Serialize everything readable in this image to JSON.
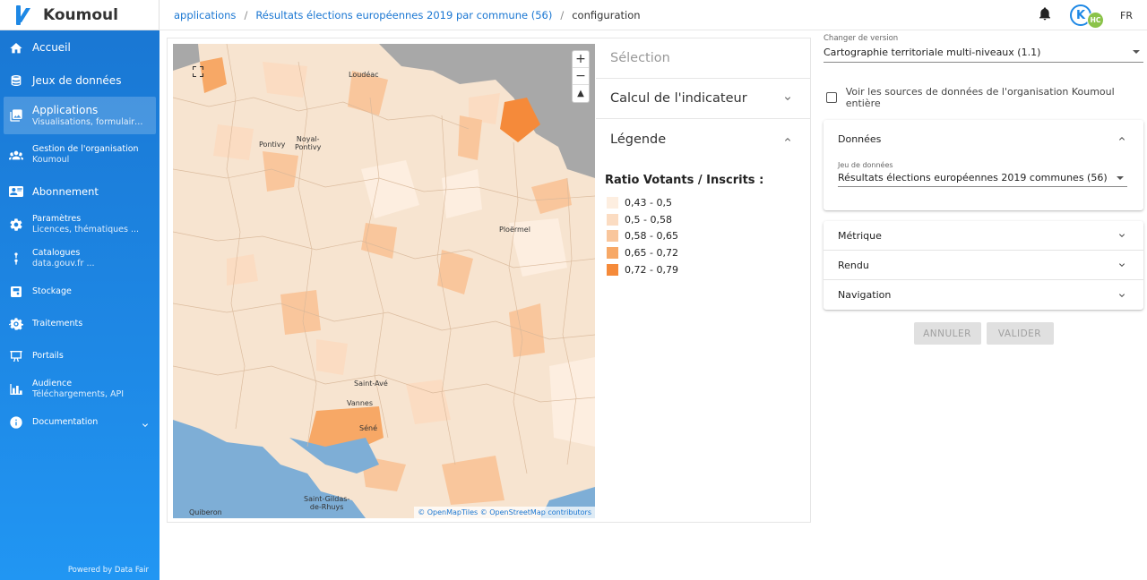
{
  "brand": {
    "name": "Koumoul"
  },
  "sidebar": {
    "items": [
      {
        "label": "Accueil",
        "sub": ""
      },
      {
        "label": "Jeux de données",
        "sub": ""
      },
      {
        "label": "Applications",
        "sub": "Visualisations, formulaires ..."
      },
      {
        "label": "Gestion de l'organisation",
        "sub": "Koumoul"
      },
      {
        "label": "Abonnement",
        "sub": ""
      },
      {
        "label": "Paramètres",
        "sub": "Licences, thématiques ..."
      },
      {
        "label": "Catalogues",
        "sub": "data.gouv.fr ..."
      },
      {
        "label": "Stockage",
        "sub": ""
      },
      {
        "label": "Traitements",
        "sub": ""
      },
      {
        "label": "Portails",
        "sub": ""
      },
      {
        "label": "Audience",
        "sub": "Téléchargements, API"
      },
      {
        "label": "Documentation",
        "sub": ""
      }
    ],
    "powered": "Powered by Data Fair"
  },
  "breadcrumb": {
    "items": [
      "applications",
      "Résultats élections européennes 2019 par commune (56)",
      "configuration"
    ],
    "sep": "/"
  },
  "header": {
    "avatar_letter": "K",
    "avatar_initials": "HC",
    "lang": "FR"
  },
  "map": {
    "places": [
      "Loudéac",
      "Pontivy",
      "Noyal-\nPontivy",
      "Ploërmel",
      "Saint-Avé",
      "Vannes",
      "Séné",
      "Saint-Gildas-\nde-Rhuys",
      "Quiberon"
    ],
    "zoom_in": "+",
    "zoom_out": "−",
    "reset": "▲",
    "attribution_1": "© OpenMapTiles",
    "attribution_2": "© OpenStreetMap contributors"
  },
  "legend_panel": {
    "selection": "Sélection",
    "indicator": "Calcul de l'indicateur",
    "legend": "Légende",
    "title": "Ratio Votants / Inscrits :",
    "classes": [
      {
        "label": "0,43 - 0,5",
        "color": "#fdeee0"
      },
      {
        "label": "0,5 - 0,58",
        "color": "#fbdcc2"
      },
      {
        "label": "0,58 - 0,65",
        "color": "#f9c69c"
      },
      {
        "label": "0,65 - 0,72",
        "color": "#f7a866"
      },
      {
        "label": "0,72 - 0,79",
        "color": "#f58a3a"
      }
    ]
  },
  "config": {
    "version_label": "Changer de version",
    "version_value": "Cartographie territoriale multi-niveaux (1.1)",
    "checkbox_label": "Voir les sources de données de l'organisation Koumoul entière",
    "donnees": {
      "title": "Données",
      "dataset_label": "Jeu de données",
      "dataset_value": "Résultats élections européennes 2019 communes (56)"
    },
    "sections": [
      "Métrique",
      "Rendu",
      "Navigation"
    ],
    "cancel": "ANNULER",
    "validate": "VALIDER"
  }
}
